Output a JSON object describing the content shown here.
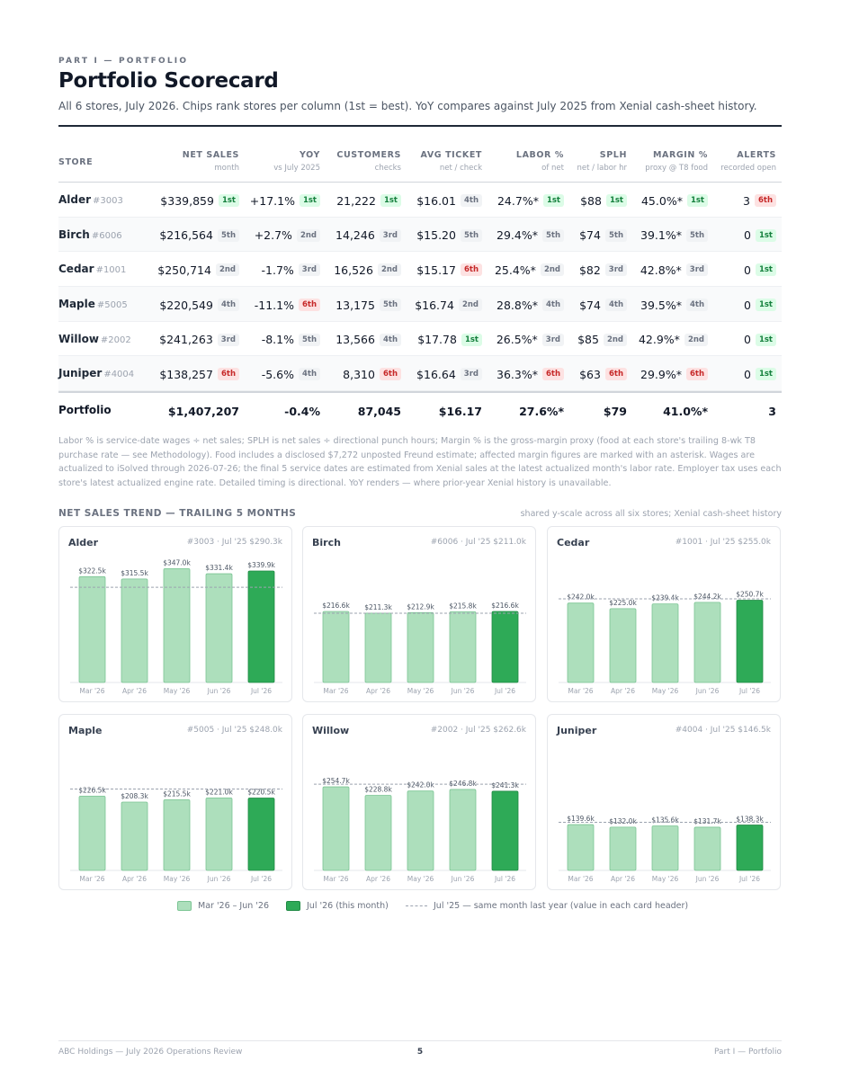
{
  "eyebrow": "PART I — PORTFOLIO",
  "title": "Portfolio Scorecard",
  "subtitle": "All 6 stores, July 2026. Chips rank stores per column (1st = best). YoY compares against July 2025 from Xenial cash-sheet history.",
  "table": {
    "store_header": "STORE",
    "columns": [
      {
        "title": "NET SALES",
        "sub": "month"
      },
      {
        "title": "YOY",
        "sub": "vs July 2025"
      },
      {
        "title": "CUSTOMERS",
        "sub": "checks"
      },
      {
        "title": "AVG TICKET",
        "sub": "net / check"
      },
      {
        "title": "LABOR %",
        "sub": "of net"
      },
      {
        "title": "SPLH",
        "sub": "net / labor hr"
      },
      {
        "title": "MARGIN %",
        "sub": "proxy @ T8 food"
      },
      {
        "title": "ALERTS",
        "sub": "recorded open"
      }
    ],
    "rows": [
      {
        "name": "Alder",
        "num": "#3003",
        "cells": [
          {
            "v": "$339,859",
            "chip": "1st",
            "tone": "g"
          },
          {
            "v": "+17.1%",
            "chip": "1st",
            "tone": "g"
          },
          {
            "v": "21,222",
            "chip": "1st",
            "tone": "g"
          },
          {
            "v": "$16.01",
            "chip": "4th",
            "tone": "n"
          },
          {
            "v": "24.7%*",
            "chip": "1st",
            "tone": "g"
          },
          {
            "v": "$88",
            "chip": "1st",
            "tone": "g"
          },
          {
            "v": "45.0%*",
            "chip": "1st",
            "tone": "g"
          },
          {
            "v": "3",
            "chip": "6th",
            "tone": "r"
          }
        ]
      },
      {
        "name": "Birch",
        "num": "#6006",
        "cells": [
          {
            "v": "$216,564",
            "chip": "5th",
            "tone": "n"
          },
          {
            "v": "+2.7%",
            "chip": "2nd",
            "tone": "n"
          },
          {
            "v": "14,246",
            "chip": "3rd",
            "tone": "n"
          },
          {
            "v": "$15.20",
            "chip": "5th",
            "tone": "n"
          },
          {
            "v": "29.4%*",
            "chip": "5th",
            "tone": "n"
          },
          {
            "v": "$74",
            "chip": "5th",
            "tone": "n"
          },
          {
            "v": "39.1%*",
            "chip": "5th",
            "tone": "n"
          },
          {
            "v": "0",
            "chip": "1st",
            "tone": "g"
          }
        ]
      },
      {
        "name": "Cedar",
        "num": "#1001",
        "cells": [
          {
            "v": "$250,714",
            "chip": "2nd",
            "tone": "n"
          },
          {
            "v": "-1.7%",
            "chip": "3rd",
            "tone": "n"
          },
          {
            "v": "16,526",
            "chip": "2nd",
            "tone": "n"
          },
          {
            "v": "$15.17",
            "chip": "6th",
            "tone": "r"
          },
          {
            "v": "25.4%*",
            "chip": "2nd",
            "tone": "n"
          },
          {
            "v": "$82",
            "chip": "3rd",
            "tone": "n"
          },
          {
            "v": "42.8%*",
            "chip": "3rd",
            "tone": "n"
          },
          {
            "v": "0",
            "chip": "1st",
            "tone": "g"
          }
        ]
      },
      {
        "name": "Maple",
        "num": "#5005",
        "cells": [
          {
            "v": "$220,549",
            "chip": "4th",
            "tone": "n"
          },
          {
            "v": "-11.1%",
            "chip": "6th",
            "tone": "r"
          },
          {
            "v": "13,175",
            "chip": "5th",
            "tone": "n"
          },
          {
            "v": "$16.74",
            "chip": "2nd",
            "tone": "n"
          },
          {
            "v": "28.8%*",
            "chip": "4th",
            "tone": "n"
          },
          {
            "v": "$74",
            "chip": "4th",
            "tone": "n"
          },
          {
            "v": "39.5%*",
            "chip": "4th",
            "tone": "n"
          },
          {
            "v": "0",
            "chip": "1st",
            "tone": "g"
          }
        ]
      },
      {
        "name": "Willow",
        "num": "#2002",
        "cells": [
          {
            "v": "$241,263",
            "chip": "3rd",
            "tone": "n"
          },
          {
            "v": "-8.1%",
            "chip": "5th",
            "tone": "n"
          },
          {
            "v": "13,566",
            "chip": "4th",
            "tone": "n"
          },
          {
            "v": "$17.78",
            "chip": "1st",
            "tone": "g"
          },
          {
            "v": "26.5%*",
            "chip": "3rd",
            "tone": "n"
          },
          {
            "v": "$85",
            "chip": "2nd",
            "tone": "n"
          },
          {
            "v": "42.9%*",
            "chip": "2nd",
            "tone": "n"
          },
          {
            "v": "0",
            "chip": "1st",
            "tone": "g"
          }
        ]
      },
      {
        "name": "Juniper",
        "num": "#4004",
        "cells": [
          {
            "v": "$138,257",
            "chip": "6th",
            "tone": "r"
          },
          {
            "v": "-5.6%",
            "chip": "4th",
            "tone": "n"
          },
          {
            "v": "8,310",
            "chip": "6th",
            "tone": "r"
          },
          {
            "v": "$16.64",
            "chip": "3rd",
            "tone": "n"
          },
          {
            "v": "36.3%*",
            "chip": "6th",
            "tone": "r"
          },
          {
            "v": "$63",
            "chip": "6th",
            "tone": "r"
          },
          {
            "v": "29.9%*",
            "chip": "6th",
            "tone": "r"
          },
          {
            "v": "0",
            "chip": "1st",
            "tone": "g"
          }
        ]
      }
    ],
    "total": {
      "name": "Portfolio",
      "values": [
        "$1,407,207",
        "-0.4%",
        "87,045",
        "$16.17",
        "27.6%*",
        "$79",
        "41.0%*",
        "3"
      ]
    }
  },
  "notes": "Labor % is service-date wages ÷ net sales; SPLH is net sales ÷ directional punch hours; Margin % is the gross-margin proxy (food at each store's trailing 8-wk T8 purchase rate — see Methodology). Food includes a disclosed $7,272 unposted Freund estimate; affected margin figures are marked with an asterisk. Wages are actualized to iSolved through 2026-07-26; the final 5 service dates are estimated from Xenial sales at the latest actualized month's labor rate. Employer tax uses each store's latest actualized engine rate. Detailed timing is directional. YoY renders — where prior-year Xenial history is unavailable.",
  "trend": {
    "title": "NET SALES TREND — TRAILING 5 MONTHS",
    "note": "shared y-scale across all six stores; Xenial cash-sheet history"
  },
  "chart_data": [
    {
      "type": "bar",
      "title": "Alder",
      "meta": "#3003 · Jul '25 $290.3k",
      "categories": [
        "Mar '26",
        "Apr '26",
        "May '26",
        "Jun '26",
        "Jul '26"
      ],
      "values": [
        322.5,
        315.5,
        347.0,
        331.4,
        339.9
      ],
      "labels": [
        "$322.5k",
        "$315.5k",
        "$347.0k",
        "$331.4k",
        "$339.9k"
      ],
      "reference": 290.3
    },
    {
      "type": "bar",
      "title": "Birch",
      "meta": "#6006 · Jul '25 $211.0k",
      "categories": [
        "Mar '26",
        "Apr '26",
        "May '26",
        "Jun '26",
        "Jul '26"
      ],
      "values": [
        216.6,
        211.3,
        212.9,
        215.8,
        216.6
      ],
      "labels": [
        "$216.6k",
        "$211.3k",
        "$212.9k",
        "$215.8k",
        "$216.6k"
      ],
      "reference": 211.0
    },
    {
      "type": "bar",
      "title": "Cedar",
      "meta": "#1001 · Jul '25 $255.0k",
      "categories": [
        "Mar '26",
        "Apr '26",
        "May '26",
        "Jun '26",
        "Jul '26"
      ],
      "values": [
        242.0,
        225.0,
        239.4,
        244.2,
        250.7
      ],
      "labels": [
        "$242.0k",
        "$225.0k",
        "$239.4k",
        "$244.2k",
        "$250.7k"
      ],
      "reference": 255.0
    },
    {
      "type": "bar",
      "title": "Maple",
      "meta": "#5005 · Jul '25 $248.0k",
      "categories": [
        "Mar '26",
        "Apr '26",
        "May '26",
        "Jun '26",
        "Jul '26"
      ],
      "values": [
        226.5,
        208.3,
        215.5,
        221.0,
        220.5
      ],
      "labels": [
        "$226.5k",
        "$208.3k",
        "$215.5k",
        "$221.0k",
        "$220.5k"
      ],
      "reference": 248.0
    },
    {
      "type": "bar",
      "title": "Willow",
      "meta": "#2002 · Jul '25 $262.6k",
      "categories": [
        "Mar '26",
        "Apr '26",
        "May '26",
        "Jun '26",
        "Jul '26"
      ],
      "values": [
        254.7,
        228.8,
        242.0,
        246.8,
        241.3
      ],
      "labels": [
        "$254.7k",
        "$228.8k",
        "$242.0k",
        "$246.8k",
        "$241.3k"
      ],
      "reference": 262.6
    },
    {
      "type": "bar",
      "title": "Juniper",
      "meta": "#4004 · Jul '25 $146.5k",
      "categories": [
        "Mar '26",
        "Apr '26",
        "May '26",
        "Jun '26",
        "Jul '26"
      ],
      "values": [
        139.6,
        132.0,
        135.6,
        131.7,
        138.3
      ],
      "labels": [
        "$139.6k",
        "$132.0k",
        "$135.6k",
        "$131.7k",
        "$138.3k"
      ],
      "reference": 146.5
    }
  ],
  "colors": {
    "prior_bar": "#addfbc",
    "prior_bar_stroke": "#7cc594",
    "current_bar": "#2eaa57",
    "current_bar_stroke": "#208a44",
    "reference_line": "#9ca3af"
  },
  "legend": {
    "prior": "Mar '26 – Jun '26",
    "current": "Jul '26 (this month)",
    "reference": "Jul '25 — same month last year (value in each card header)"
  },
  "footer": {
    "left": "ABC Holdings — July 2026 Operations Review",
    "page": "5",
    "right": "Part I — Portfolio"
  }
}
